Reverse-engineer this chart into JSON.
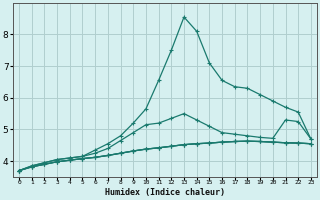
{
  "xlabel": "Humidex (Indice chaleur)",
  "background_color": "#d6f0f0",
  "grid_color": "#b0cece",
  "line_color": "#1a7a6e",
  "x_values": [
    0,
    1,
    2,
    3,
    4,
    5,
    6,
    7,
    8,
    9,
    10,
    11,
    12,
    13,
    14,
    15,
    16,
    17,
    18,
    19,
    20,
    21,
    22,
    23
  ],
  "series_spike": [
    3.7,
    3.85,
    3.95,
    4.05,
    4.1,
    4.15,
    4.35,
    4.55,
    4.8,
    5.2,
    5.65,
    6.55,
    7.5,
    8.55,
    8.1,
    7.1,
    6.55,
    6.35,
    6.3,
    6.1,
    5.9,
    5.7,
    5.55,
    4.7
  ],
  "series_mid": [
    3.7,
    3.85,
    3.95,
    4.05,
    4.1,
    4.15,
    4.25,
    4.4,
    4.65,
    4.9,
    5.15,
    5.2,
    5.35,
    5.5,
    5.3,
    5.1,
    4.9,
    4.85,
    4.8,
    4.75,
    4.72,
    5.3,
    5.25,
    4.7
  ],
  "series_flat1": [
    3.7,
    3.82,
    3.9,
    3.98,
    4.03,
    4.08,
    4.12,
    4.18,
    4.25,
    4.32,
    4.38,
    4.42,
    4.47,
    4.52,
    4.55,
    4.57,
    4.6,
    4.62,
    4.63,
    4.62,
    4.6,
    4.58,
    4.57,
    4.55
  ],
  "series_flat2": [
    3.7,
    3.82,
    3.9,
    3.98,
    4.03,
    4.08,
    4.12,
    4.18,
    4.25,
    4.32,
    4.38,
    4.42,
    4.47,
    4.52,
    4.55,
    4.57,
    4.6,
    4.62,
    4.63,
    4.62,
    4.6,
    4.58,
    4.57,
    4.55
  ],
  "series_flat3": [
    3.7,
    3.82,
    3.9,
    3.98,
    4.03,
    4.08,
    4.12,
    4.18,
    4.25,
    4.32,
    4.38,
    4.42,
    4.47,
    4.52,
    4.55,
    4.57,
    4.6,
    4.62,
    4.63,
    4.62,
    4.6,
    4.58,
    4.57,
    4.55
  ],
  "ylim": [
    3.5,
    9.0
  ],
  "xlim": [
    -0.5,
    23.5
  ],
  "yticks": [
    4,
    5,
    6,
    7,
    8
  ],
  "xtick_labels": [
    "0",
    "1",
    "2",
    "3",
    "4",
    "5",
    "6",
    "7",
    "8",
    "9",
    "10",
    "11",
    "12",
    "13",
    "14",
    "15",
    "16",
    "17",
    "18",
    "19",
    "20",
    "21",
    "22",
    "23"
  ]
}
